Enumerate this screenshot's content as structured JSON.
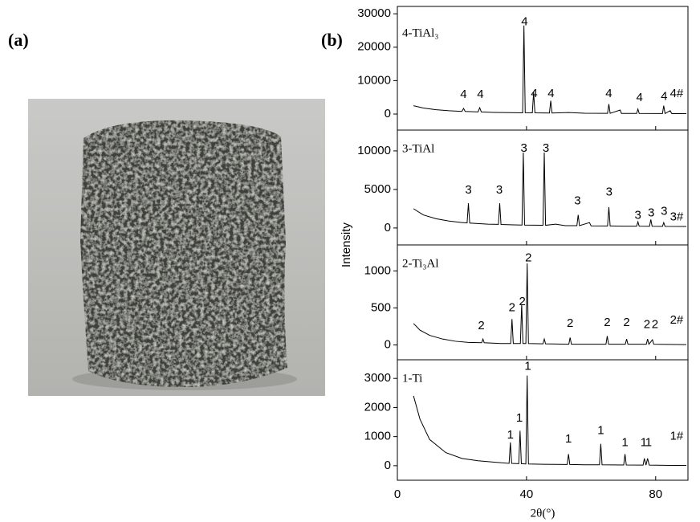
{
  "panels": [
    "(a)",
    "(b)"
  ],
  "y_label": "Intensity",
  "x_label": "2θ(°)",
  "chart_data": [
    {
      "type": "line",
      "xlim": [
        0,
        90
      ],
      "ylim": [
        -4800,
        32200
      ],
      "yticks": [
        0,
        10000,
        20000,
        30000
      ],
      "x": [
        5,
        8,
        12,
        16,
        20,
        20.5,
        21,
        25,
        25.5,
        26,
        30,
        35,
        38.8,
        39.2,
        39.6,
        41.8,
        42.2,
        42.6,
        47.1,
        47.5,
        47.9,
        53,
        58,
        65.1,
        65.5,
        65.9,
        69,
        69.4,
        74.1,
        74.5,
        74.9,
        82.1,
        82.5,
        82.9,
        84.5,
        85,
        89.5
      ],
      "series": [
        {
          "name": "4-TiAl₃",
          "color": "#000000",
          "values": [
            2500,
            1800,
            1300,
            1000,
            800,
            1700,
            780,
            650,
            1900,
            640,
            500,
            420,
            380,
            26500,
            380,
            360,
            6500,
            350,
            320,
            4000,
            310,
            450,
            250,
            220,
            3000,
            220,
            1200,
            200,
            180,
            1500,
            170,
            150,
            2500,
            150,
            1000,
            140,
            120
          ]
        }
      ],
      "annotations": [
        {
          "x": 20.5,
          "y": 5800,
          "text": "4"
        },
        {
          "x": 25.7,
          "y": 5800,
          "text": "4"
        },
        {
          "x": 39.4,
          "y": 27500,
          "text": "4"
        },
        {
          "x": 42.4,
          "y": 6000,
          "text": "4"
        },
        {
          "x": 47.6,
          "y": 6000,
          "text": "4"
        },
        {
          "x": 65.5,
          "y": 6000,
          "text": "4"
        },
        {
          "x": 75,
          "y": 4800,
          "text": "4"
        },
        {
          "x": 82.6,
          "y": 5200,
          "text": "4"
        },
        {
          "x": 86.5,
          "y": 6000,
          "text": "4#"
        }
      ]
    },
    {
      "type": "line",
      "xlim": [
        0,
        90
      ],
      "ylim": [
        -2200,
        12700
      ],
      "yticks": [
        0,
        5000,
        10000
      ],
      "x": [
        5,
        8,
        12,
        16,
        20,
        21.6,
        22,
        22.4,
        28,
        31.3,
        31.7,
        32.1,
        36,
        38.6,
        39,
        39.4,
        45.1,
        45.5,
        45.9,
        49,
        52,
        55.6,
        56,
        56.4,
        59.5,
        60,
        65.1,
        65.5,
        65.9,
        70,
        74.1,
        74.5,
        74.9,
        78.1,
        78.5,
        78.9,
        82.1,
        82.5,
        82.9,
        89.5
      ],
      "series": [
        {
          "name": "3-TiAl",
          "color": "#000000",
          "values": [
            2500,
            1700,
            1200,
            900,
            700,
            650,
            3200,
            640,
            500,
            470,
            3200,
            460,
            400,
            380,
            9800,
            380,
            350,
            9800,
            350,
            500,
            300,
            300,
            1700,
            300,
            700,
            280,
            260,
            2700,
            260,
            240,
            230,
            800,
            230,
            220,
            1100,
            220,
            210,
            700,
            210,
            200
          ]
        }
      ],
      "annotations": [
        {
          "x": 22,
          "y": 4900,
          "text": "3"
        },
        {
          "x": 31.6,
          "y": 4900,
          "text": "3"
        },
        {
          "x": 39.2,
          "y": 10300,
          "text": "3"
        },
        {
          "x": 46,
          "y": 10300,
          "text": "3"
        },
        {
          "x": 55.8,
          "y": 3500,
          "text": "3"
        },
        {
          "x": 65.6,
          "y": 4600,
          "text": "3"
        },
        {
          "x": 74.5,
          "y": 1600,
          "text": "3"
        },
        {
          "x": 78.6,
          "y": 1900,
          "text": "3"
        },
        {
          "x": 82.6,
          "y": 2100,
          "text": "3"
        },
        {
          "x": 86.5,
          "y": 1400,
          "text": "3#"
        }
      ]
    },
    {
      "type": "line",
      "xlim": [
        0,
        90
      ],
      "ylim": [
        -200,
        1350
      ],
      "yticks": [
        0,
        500,
        1000
      ],
      "x": [
        5,
        7,
        10,
        14,
        18,
        22,
        26.1,
        26.5,
        26.9,
        32,
        35.1,
        35.5,
        35.9,
        38.1,
        38.5,
        38.9,
        39.8,
        40.2,
        40.6,
        45.1,
        45.5,
        45.9,
        53.1,
        53.5,
        53.9,
        64.6,
        65,
        65.4,
        70.6,
        71,
        71.4,
        77.1,
        77.5,
        77.9,
        79,
        79.4,
        89.5
      ],
      "series": [
        {
          "name": "2-Ti₃Al",
          "color": "#000000",
          "values": [
            290,
            200,
            130,
            80,
            50,
            35,
            30,
            80,
            30,
            20,
            20,
            350,
            20,
            20,
            550,
            20,
            20,
            1100,
            20,
            15,
            80,
            15,
            10,
            100,
            10,
            10,
            120,
            10,
            10,
            80,
            10,
            10,
            80,
            10,
            70,
            10,
            5
          ]
        }
      ],
      "annotations": [
        {
          "x": 26,
          "y": 255,
          "text": "2"
        },
        {
          "x": 35.5,
          "y": 500,
          "text": "2"
        },
        {
          "x": 38.7,
          "y": 580,
          "text": "2"
        },
        {
          "x": 40.6,
          "y": 1170,
          "text": "2"
        },
        {
          "x": 53.5,
          "y": 290,
          "text": "2"
        },
        {
          "x": 65,
          "y": 300,
          "text": "2"
        },
        {
          "x": 71,
          "y": 300,
          "text": "2"
        },
        {
          "x": 77.3,
          "y": 270,
          "text": "2"
        },
        {
          "x": 79.8,
          "y": 270,
          "text": "2"
        },
        {
          "x": 86.5,
          "y": 330,
          "text": "2#"
        }
      ]
    },
    {
      "type": "line",
      "xlim": [
        0,
        90
      ],
      "ylim": [
        -500,
        3640
      ],
      "yticks": [
        0,
        1000,
        2000,
        3000
      ],
      "xticks": [
        0,
        40,
        80
      ],
      "x": [
        5,
        7,
        10,
        15,
        20,
        25,
        30,
        34.6,
        35,
        35.4,
        37.6,
        38,
        38.4,
        39.8,
        40.2,
        40.6,
        45,
        52.6,
        53,
        53.4,
        58,
        62.6,
        63,
        63.4,
        70.1,
        70.5,
        70.9,
        76.1,
        76.5,
        77,
        77.5,
        78,
        85,
        89.5
      ],
      "series": [
        {
          "name": "1-Ti",
          "color": "#000000",
          "values": [
            2400,
            1600,
            900,
            450,
            250,
            170,
            120,
            80,
            800,
            80,
            70,
            1200,
            70,
            60,
            3100,
            60,
            50,
            40,
            400,
            40,
            30,
            30,
            750,
            30,
            25,
            400,
            25,
            20,
            250,
            20,
            250,
            20,
            10,
            10
          ]
        }
      ],
      "annotations": [
        {
          "x": 35,
          "y": 1050,
          "text": "1"
        },
        {
          "x": 37.8,
          "y": 1620,
          "text": "1"
        },
        {
          "x": 40.4,
          "y": 3400,
          "text": "1"
        },
        {
          "x": 53,
          "y": 900,
          "text": "1"
        },
        {
          "x": 63,
          "y": 1200,
          "text": "1"
        },
        {
          "x": 70.5,
          "y": 780,
          "text": "1"
        },
        {
          "x": 76.3,
          "y": 780,
          "text": "1"
        },
        {
          "x": 77.8,
          "y": 780,
          "text": "1"
        },
        {
          "x": 86.5,
          "y": 1000,
          "text": "1#"
        }
      ]
    }
  ]
}
